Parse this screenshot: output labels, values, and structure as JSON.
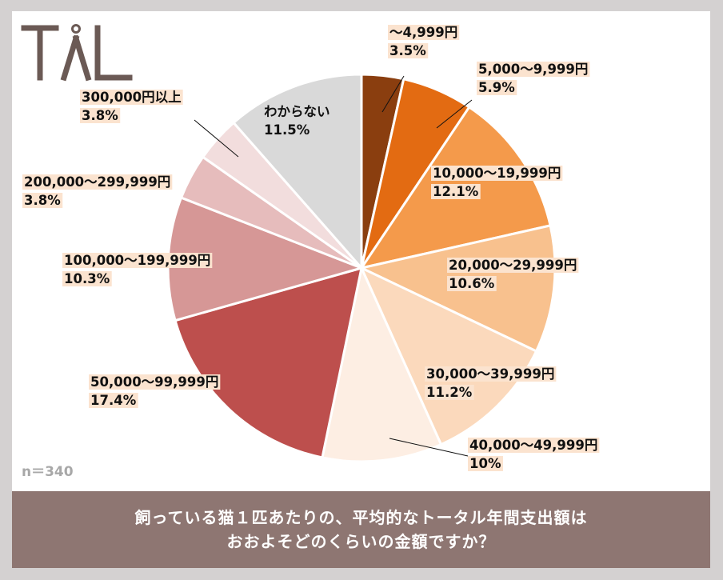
{
  "logo": {
    "text": "TAL",
    "color": "#6b5a55"
  },
  "sample": "n＝340",
  "question": {
    "line1": "飼っている猫１匹あたりの、平均的なトータル年間支出額は",
    "line2": "おおよそどのくらいの金額ですか？"
  },
  "chart_data": {
    "type": "pie",
    "start": "12 o'clock",
    "direction": "clockwise",
    "slices": [
      {
        "label": "～4,999円",
        "value": 3.5,
        "display": "3.5%",
        "color": "#8a3e0f"
      },
      {
        "label": "5,000～9,999円",
        "value": 5.9,
        "display": "5.9%",
        "color": "#e36b12"
      },
      {
        "label": "10,000～19,999円",
        "value": 12.1,
        "display": "12.1%",
        "color": "#f49a4b"
      },
      {
        "label": "20,000～29,999円",
        "value": 10.6,
        "display": "10.6%",
        "color": "#f8c18e"
      },
      {
        "label": "30,000～39,999円",
        "value": 11.2,
        "display": "11.2%",
        "color": "#fbd9bc"
      },
      {
        "label": "40,000～49,999円",
        "value": 10,
        "display": "10%",
        "color": "#fdeee3"
      },
      {
        "label": "50,000～99,999円",
        "value": 17.4,
        "display": "17.4%",
        "color": "#bd4f4d"
      },
      {
        "label": "100,000～199,999円",
        "value": 10.3,
        "display": "10.3%",
        "color": "#d69796"
      },
      {
        "label": "200,000～299,999円",
        "value": 3.8,
        "display": "3.8%",
        "color": "#e6bcbc"
      },
      {
        "label": "300,000円以上",
        "value": 3.8,
        "display": "3.8%",
        "color": "#f2dddd"
      },
      {
        "label": "わからない",
        "value": 11.5,
        "display": "11.5%",
        "color": "#d9d9d9"
      }
    ]
  }
}
